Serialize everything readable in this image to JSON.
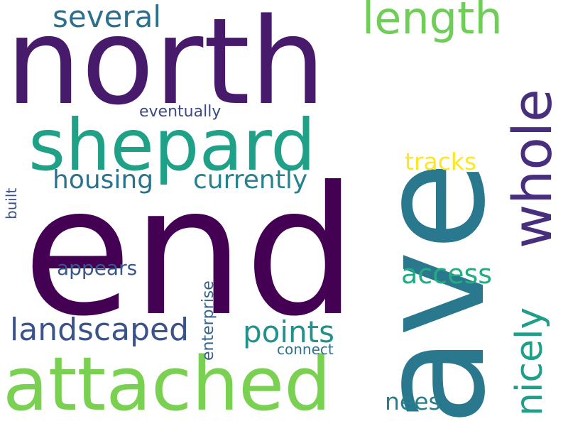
{
  "words": {
    "end": {
      "text": "end",
      "color": "#440154"
    },
    "ave": {
      "text": "ave",
      "color": "#2a788e"
    },
    "north": {
      "text": "north",
      "color": "#481a6c"
    },
    "shepard": {
      "text": "shepard",
      "color": "#1fa187"
    },
    "attached": {
      "text": "attached",
      "color": "#7ad151"
    },
    "whole": {
      "text": "whole",
      "color": "#472f7d"
    },
    "length": {
      "text": "length",
      "color": "#6ece58"
    },
    "several": {
      "text": "several",
      "color": "#2d708e"
    },
    "nicely": {
      "text": "nicely",
      "color": "#1f9e89"
    },
    "landscaped": {
      "text": "landscaped",
      "color": "#3b528b"
    },
    "points": {
      "text": "points",
      "color": "#21918c"
    },
    "access": {
      "text": "access",
      "color": "#25ab82"
    },
    "housing": {
      "text": "housing",
      "color": "#2c728e"
    },
    "currently": {
      "text": "currently",
      "color": "#26828e"
    },
    "tracks": {
      "text": "tracks",
      "color": "#fde725"
    },
    "appears": {
      "text": "appears",
      "color": "#38588c"
    },
    "nees": {
      "text": "nees",
      "color": "#277f8e"
    },
    "enterprise": {
      "text": "enterprise",
      "color": "#33638d"
    },
    "eventually": {
      "text": "eventually",
      "color": "#3e4989"
    },
    "connect": {
      "text": "connect",
      "color": "#2d718e"
    },
    "built": {
      "text": "built",
      "color": "#3b528b"
    }
  }
}
